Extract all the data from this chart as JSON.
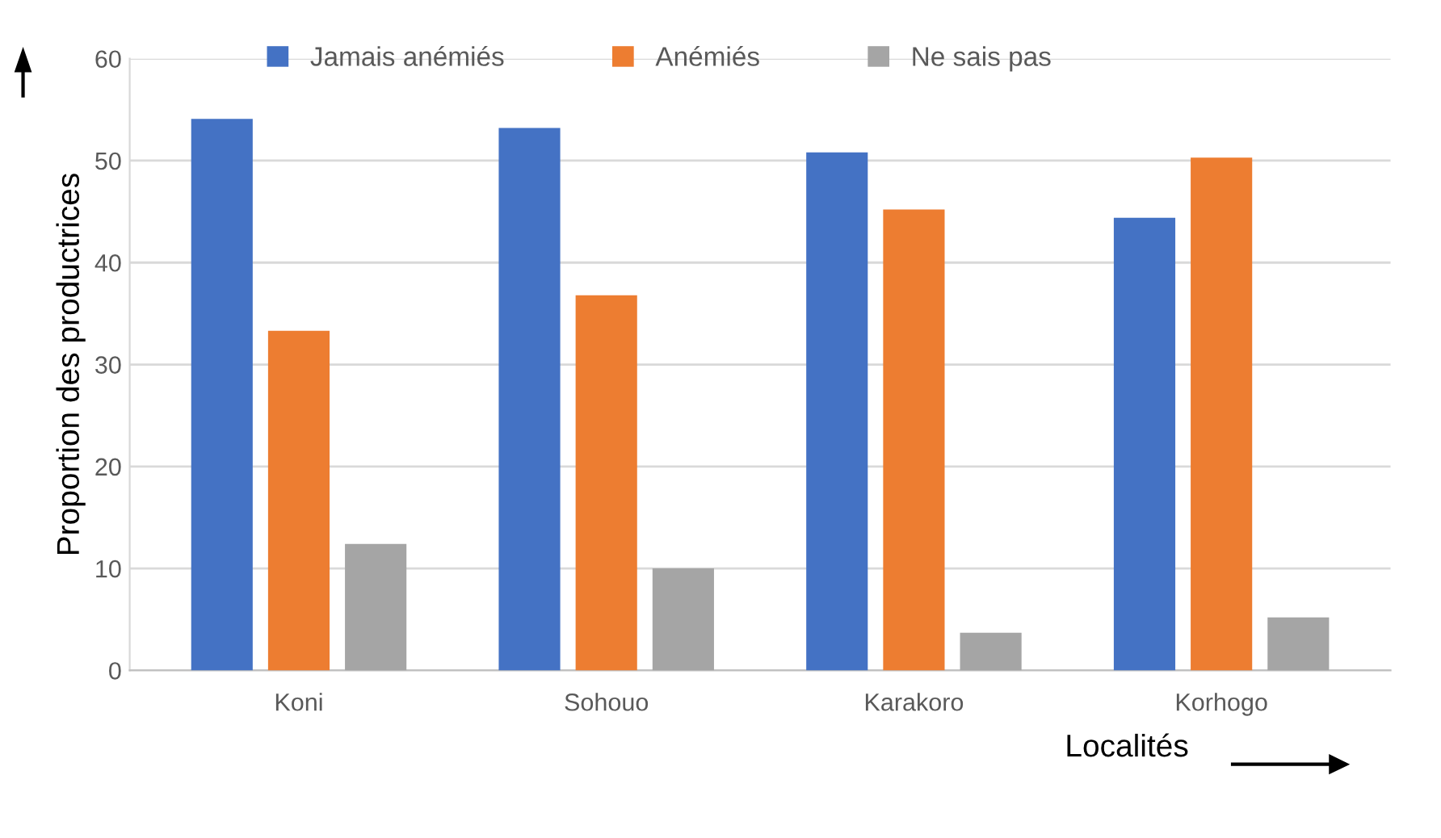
{
  "chart_data": {
    "type": "bar",
    "xlabel": "Localités",
    "ylabel": "Proportion des productrices",
    "categories": [
      "Koni",
      "Sohouo",
      "Karakoro",
      "Korhogo"
    ],
    "series": [
      {
        "name": "Jamais anémiés",
        "color": "#4472c4",
        "values": [
          54.1,
          53.2,
          50.8,
          44.4
        ]
      },
      {
        "name": "Anémiés",
        "color": "#ed7d31",
        "values": [
          33.3,
          36.8,
          45.2,
          50.3
        ]
      },
      {
        "name": "Ne sais pas",
        "color": "#a5a5a5",
        "values": [
          12.4,
          10.0,
          3.7,
          5.2
        ]
      }
    ],
    "ylim": [
      0,
      60
    ],
    "yticks": [
      0,
      10,
      20,
      30,
      40,
      50,
      60
    ],
    "grid": "y",
    "legend": "top"
  }
}
